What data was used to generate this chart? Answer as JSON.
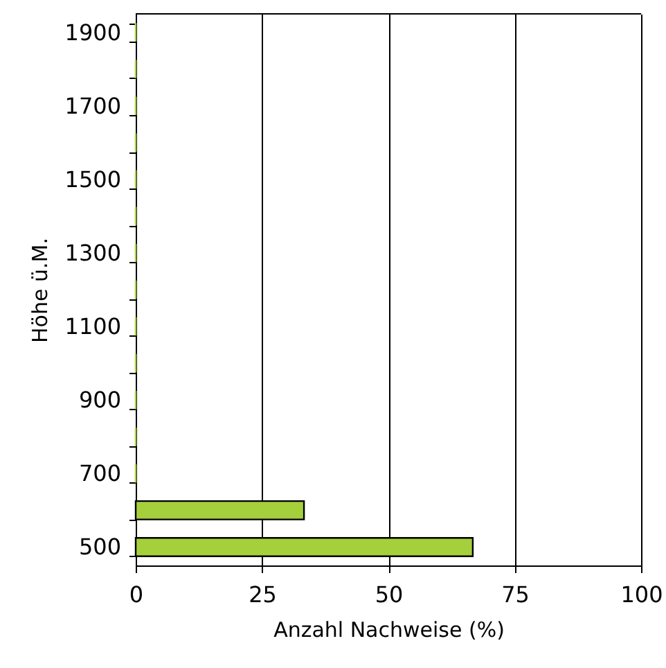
{
  "chart_data": {
    "type": "bar",
    "orientation": "horizontal",
    "xlabel": "Anzahl Nachweise (%)",
    "ylabel": "Höhe ü.M.",
    "categories": [
      "1900",
      null,
      "1700",
      null,
      "1500",
      null,
      "1300",
      null,
      "1100",
      null,
      "900",
      null,
      "700",
      null,
      "500"
    ],
    "values": [
      0,
      0,
      0,
      0,
      0,
      0,
      0,
      0,
      0,
      0,
      0,
      0,
      0,
      33.3,
      66.7
    ],
    "color": "#a6cf3c",
    "xlim": [
      0,
      100
    ],
    "xticks": [
      0,
      25,
      50,
      75,
      100
    ],
    "grid": "x"
  }
}
